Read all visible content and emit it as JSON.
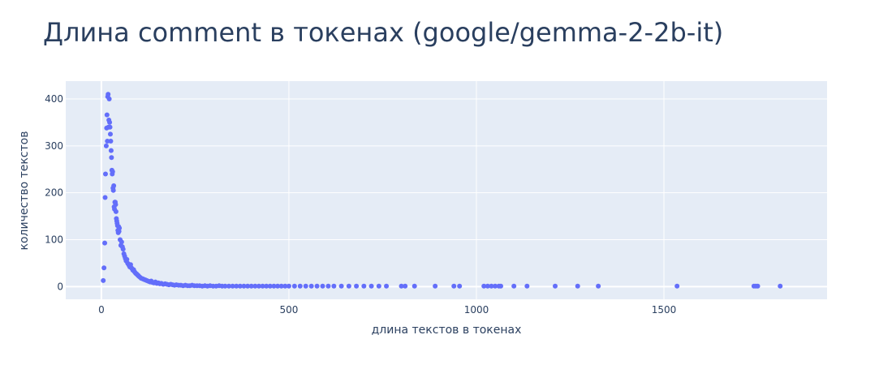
{
  "chart_data": {
    "type": "scatter",
    "title": "Длина comment в токенах (google/gemma-2-2b-it)",
    "xlabel": "длина текстов в токенах",
    "ylabel": "количество текстов",
    "xlim": [
      -95,
      1935
    ],
    "ylim": [
      -27,
      438
    ],
    "xticks": [
      0,
      500,
      1000,
      1500
    ],
    "yticks": [
      0,
      100,
      200,
      300,
      400
    ],
    "xtick_labels": [
      "0",
      "500",
      "1000",
      "1500"
    ],
    "ytick_labels": [
      "0",
      "100",
      "200",
      "300",
      "400"
    ],
    "grid": true,
    "marker_color": "#636efa",
    "background_color": "#e5ecf6",
    "series": [
      {
        "x": [
          5,
          7,
          9,
          10,
          11,
          13,
          14,
          15,
          16,
          17,
          18,
          19,
          20,
          21,
          22,
          23,
          24,
          25,
          26,
          27,
          28,
          29,
          30,
          31,
          32,
          33,
          34,
          35,
          36,
          37,
          38,
          39,
          40,
          41,
          42,
          43,
          44,
          45,
          46,
          47,
          48,
          50,
          52,
          54,
          56,
          58,
          60,
          62,
          64,
          66,
          68,
          70,
          72,
          74,
          76,
          78,
          80,
          82,
          84,
          86,
          88,
          90,
          92,
          94,
          96,
          98,
          100,
          103,
          106,
          109,
          112,
          115,
          118,
          121,
          124,
          127,
          130,
          133,
          136,
          140,
          144,
          148,
          152,
          156,
          160,
          165,
          170,
          175,
          180,
          185,
          190,
          195,
          200,
          206,
          212,
          218,
          224,
          230,
          236,
          242,
          248,
          255,
          262,
          269,
          276,
          283,
          290,
          298,
          306,
          314,
          322,
          330,
          340,
          350,
          360,
          370,
          380,
          390,
          400,
          410,
          420,
          430,
          440,
          450,
          460,
          470,
          480,
          490,
          500,
          515,
          530,
          545,
          560,
          575,
          590,
          605,
          620,
          640,
          660,
          680,
          700,
          720,
          740,
          760,
          800,
          810,
          835,
          890,
          940,
          955,
          1020,
          1030,
          1040,
          1050,
          1060,
          1065,
          1100,
          1135,
          1210,
          1270,
          1325,
          1535,
          1740,
          1745,
          1750,
          1810
        ],
        "y": [
          13,
          40,
          93,
          190,
          240,
          300,
          338,
          366,
          310,
          405,
          410,
          340,
          355,
          400,
          350,
          340,
          325,
          310,
          290,
          275,
          248,
          240,
          245,
          210,
          205,
          215,
          170,
          165,
          180,
          180,
          175,
          160,
          145,
          140,
          135,
          130,
          120,
          115,
          128,
          118,
          125,
          100,
          88,
          95,
          85,
          80,
          70,
          65,
          60,
          55,
          58,
          50,
          48,
          45,
          42,
          47,
          40,
          38,
          35,
          36,
          32,
          30,
          28,
          27,
          25,
          24,
          22,
          20,
          18,
          17,
          16,
          15,
          14,
          13,
          12,
          11,
          10,
          12,
          9,
          8,
          10,
          7,
          8,
          6,
          7,
          5,
          6,
          5,
          4,
          5,
          4,
          3,
          4,
          3,
          3,
          2,
          3,
          2,
          2,
          3,
          2,
          2,
          2,
          1,
          2,
          1,
          2,
          1,
          1,
          2,
          1,
          1,
          1,
          1,
          1,
          1,
          1,
          1,
          1,
          1,
          1,
          1,
          1,
          1,
          1,
          1,
          1,
          1,
          1,
          1,
          1,
          1,
          1,
          1,
          1,
          1,
          1,
          1,
          1,
          1,
          1,
          1,
          1,
          1,
          1,
          1,
          1,
          1,
          1,
          1,
          1,
          1,
          1,
          1,
          1,
          1,
          1,
          1,
          1,
          1,
          1,
          1,
          1,
          1,
          1,
          1
        ]
      }
    ]
  }
}
